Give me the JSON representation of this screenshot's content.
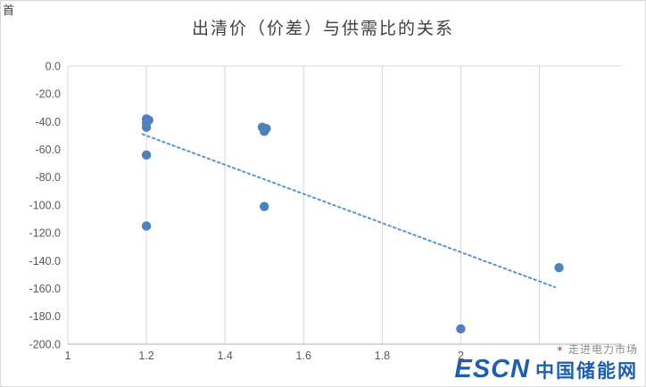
{
  "page": {
    "corner_text": "首"
  },
  "chart_data": {
    "type": "scatter",
    "title": "出清价（价差）与供需比的关系",
    "xlabel": "",
    "ylabel": "",
    "xlim": [
      1,
      2.41
    ],
    "ylim": [
      -200,
      0
    ],
    "grid": true,
    "legend": "none",
    "point_color": "#4f81bd",
    "trendline_color": "#5a93cd",
    "gridline_color": "#d9d9d9",
    "axis_color": "#b0b0b0",
    "tick_color": "#595959",
    "grid_x_values": [
      1.2,
      1.4,
      1.6,
      1.8,
      2,
      2.2
    ],
    "x_ticks": [
      {
        "v": 1,
        "label": "1"
      },
      {
        "v": 1.2,
        "label": "1.2"
      },
      {
        "v": 1.4,
        "label": "1.4"
      },
      {
        "v": 1.6,
        "label": "1.6"
      },
      {
        "v": 1.8,
        "label": "1.8"
      },
      {
        "v": 2,
        "label": "2"
      }
    ],
    "y_ticks": [
      {
        "v": 0,
        "label": "0.0"
      },
      {
        "v": -20,
        "label": "-20.0"
      },
      {
        "v": -40,
        "label": "-40.0"
      },
      {
        "v": -60,
        "label": "-60.0"
      },
      {
        "v": -80,
        "label": "-80.0"
      },
      {
        "v": -100,
        "label": "-100.0"
      },
      {
        "v": -120,
        "label": "-120.0"
      },
      {
        "v": -140,
        "label": "-140.0"
      },
      {
        "v": -160,
        "label": "-160.0"
      },
      {
        "v": -180,
        "label": "-180.0"
      },
      {
        "v": -200,
        "label": "-200.0"
      }
    ],
    "points": [
      {
        "x": 1.2,
        "y": -38
      },
      {
        "x": 1.2,
        "y": -41
      },
      {
        "x": 1.2,
        "y": -44
      },
      {
        "x": 1.206,
        "y": -39
      },
      {
        "x": 1.2,
        "y": -64
      },
      {
        "x": 1.2,
        "y": -115
      },
      {
        "x": 1.495,
        "y": -44
      },
      {
        "x": 1.505,
        "y": -45
      },
      {
        "x": 1.5,
        "y": -47
      },
      {
        "x": 1.5,
        "y": -101
      },
      {
        "x": 2.0,
        "y": -189
      },
      {
        "x": 2.25,
        "y": -145
      }
    ],
    "trendline": {
      "style": "dotted",
      "x1": 1.19,
      "y1": -49,
      "x2": 2.24,
      "y2": -159
    }
  },
  "watermark": {
    "tagline": "走进电力市场",
    "brand": "ESCN",
    "brand_cn": "中国储能网"
  }
}
